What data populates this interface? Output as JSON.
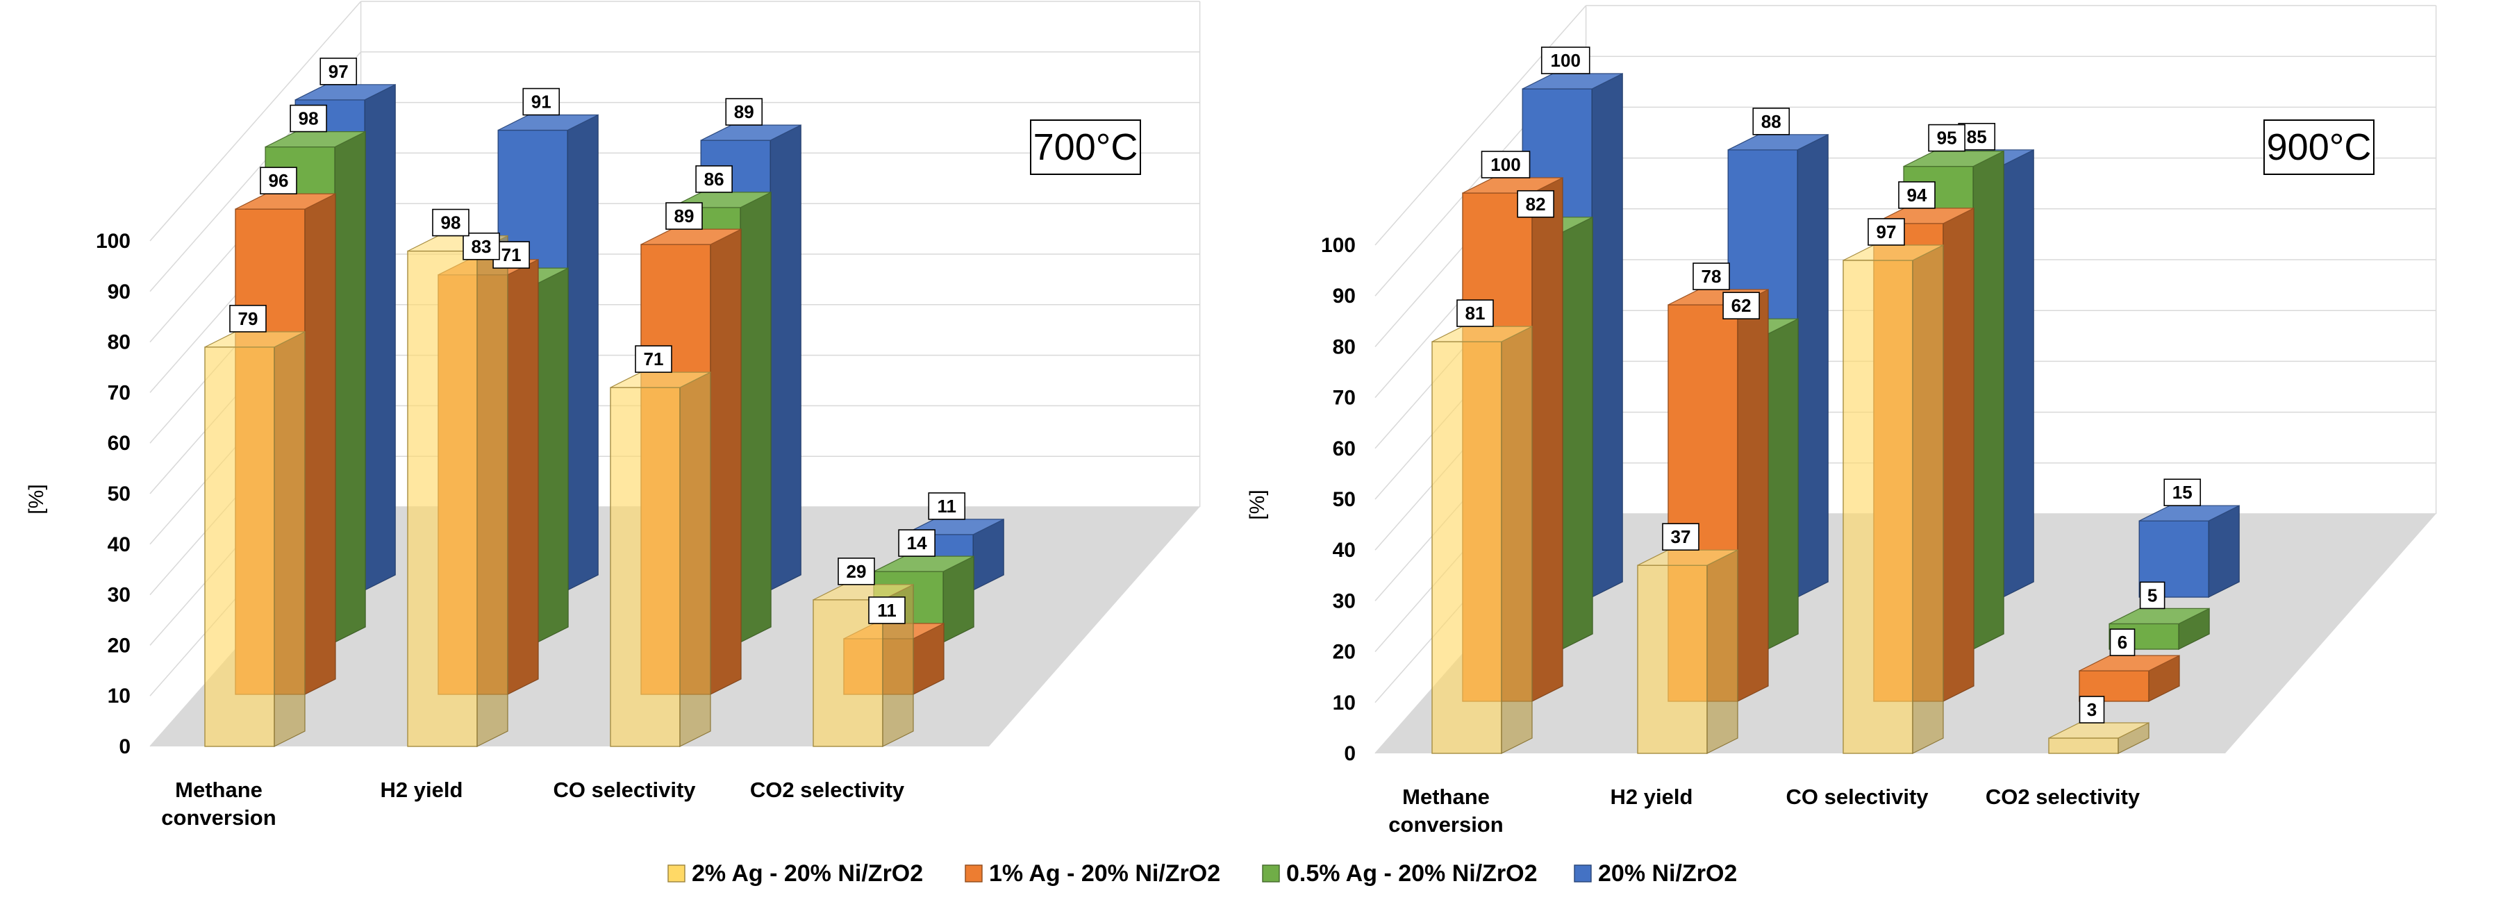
{
  "chart_data": [
    {
      "type": "bar3d",
      "title": "700°C",
      "ylabel": "[%]",
      "ylim": [
        0,
        100
      ],
      "yticks": [
        0,
        10,
        20,
        30,
        40,
        50,
        60,
        70,
        80,
        90,
        100
      ],
      "categories": [
        "Methane conversion",
        "H2  yield",
        "CO selectivity",
        "CO2 selectivity"
      ],
      "category_lines": [
        [
          "Methane",
          "conversion"
        ],
        [
          "H2  yield"
        ],
        [
          "CO selectivity"
        ],
        [
          "CO2 selectivity"
        ]
      ],
      "series": [
        {
          "name": "2% Ag - 20% Ni/ZrO2",
          "values": [
            79,
            98,
            71,
            29
          ]
        },
        {
          "name": "1% Ag - 20% Ni/ZrO2",
          "values": [
            96,
            83,
            89,
            11
          ]
        },
        {
          "name": "0.5% Ag - 20% Ni/ZrO2",
          "values": [
            98,
            71,
            86,
            14
          ]
        },
        {
          "name": "20% Ni/ZrO2",
          "values": [
            97,
            91,
            89,
            11
          ]
        }
      ]
    },
    {
      "type": "bar3d",
      "title": "900°C",
      "ylabel": "[%]",
      "ylim": [
        0,
        100
      ],
      "yticks": [
        0,
        10,
        20,
        30,
        40,
        50,
        60,
        70,
        80,
        90,
        100
      ],
      "categories": [
        "Methane conversion",
        "H2  yield",
        "CO selectivity",
        "CO2 selectivity"
      ],
      "category_lines": [
        [
          "Methane",
          "conversion"
        ],
        [
          "H2  yield"
        ],
        [
          "CO selectivity"
        ],
        [
          "CO2 selectivity"
        ]
      ],
      "series": [
        {
          "name": "2% Ag - 20% Ni/ZrO2",
          "values": [
            81,
            37,
            97,
            3
          ]
        },
        {
          "name": "1% Ag - 20% Ni/ZrO2",
          "values": [
            100,
            78,
            94,
            6
          ]
        },
        {
          "name": "0.5% Ag - 20% Ni/ZrO2",
          "values": [
            82,
            62,
            95,
            5
          ]
        },
        {
          "name": "20% Ni/ZrO2",
          "values": [
            100,
            88,
            85,
            15
          ]
        }
      ]
    }
  ],
  "legend": [
    {
      "name": "2% Ag - 20% Ni/ZrO2",
      "color": "#FFD966"
    },
    {
      "name": "1% Ag - 20% Ni/ZrO2",
      "color": "#ED7D31"
    },
    {
      "name": "0.5% Ag - 20% Ni/ZrO2",
      "color": "#70AD47"
    },
    {
      "name": "20% Ni/ZrO2",
      "color": "#4472C4"
    }
  ],
  "colors": [
    "#FFD966",
    "#ED7D31",
    "#70AD47",
    "#4472C4"
  ]
}
